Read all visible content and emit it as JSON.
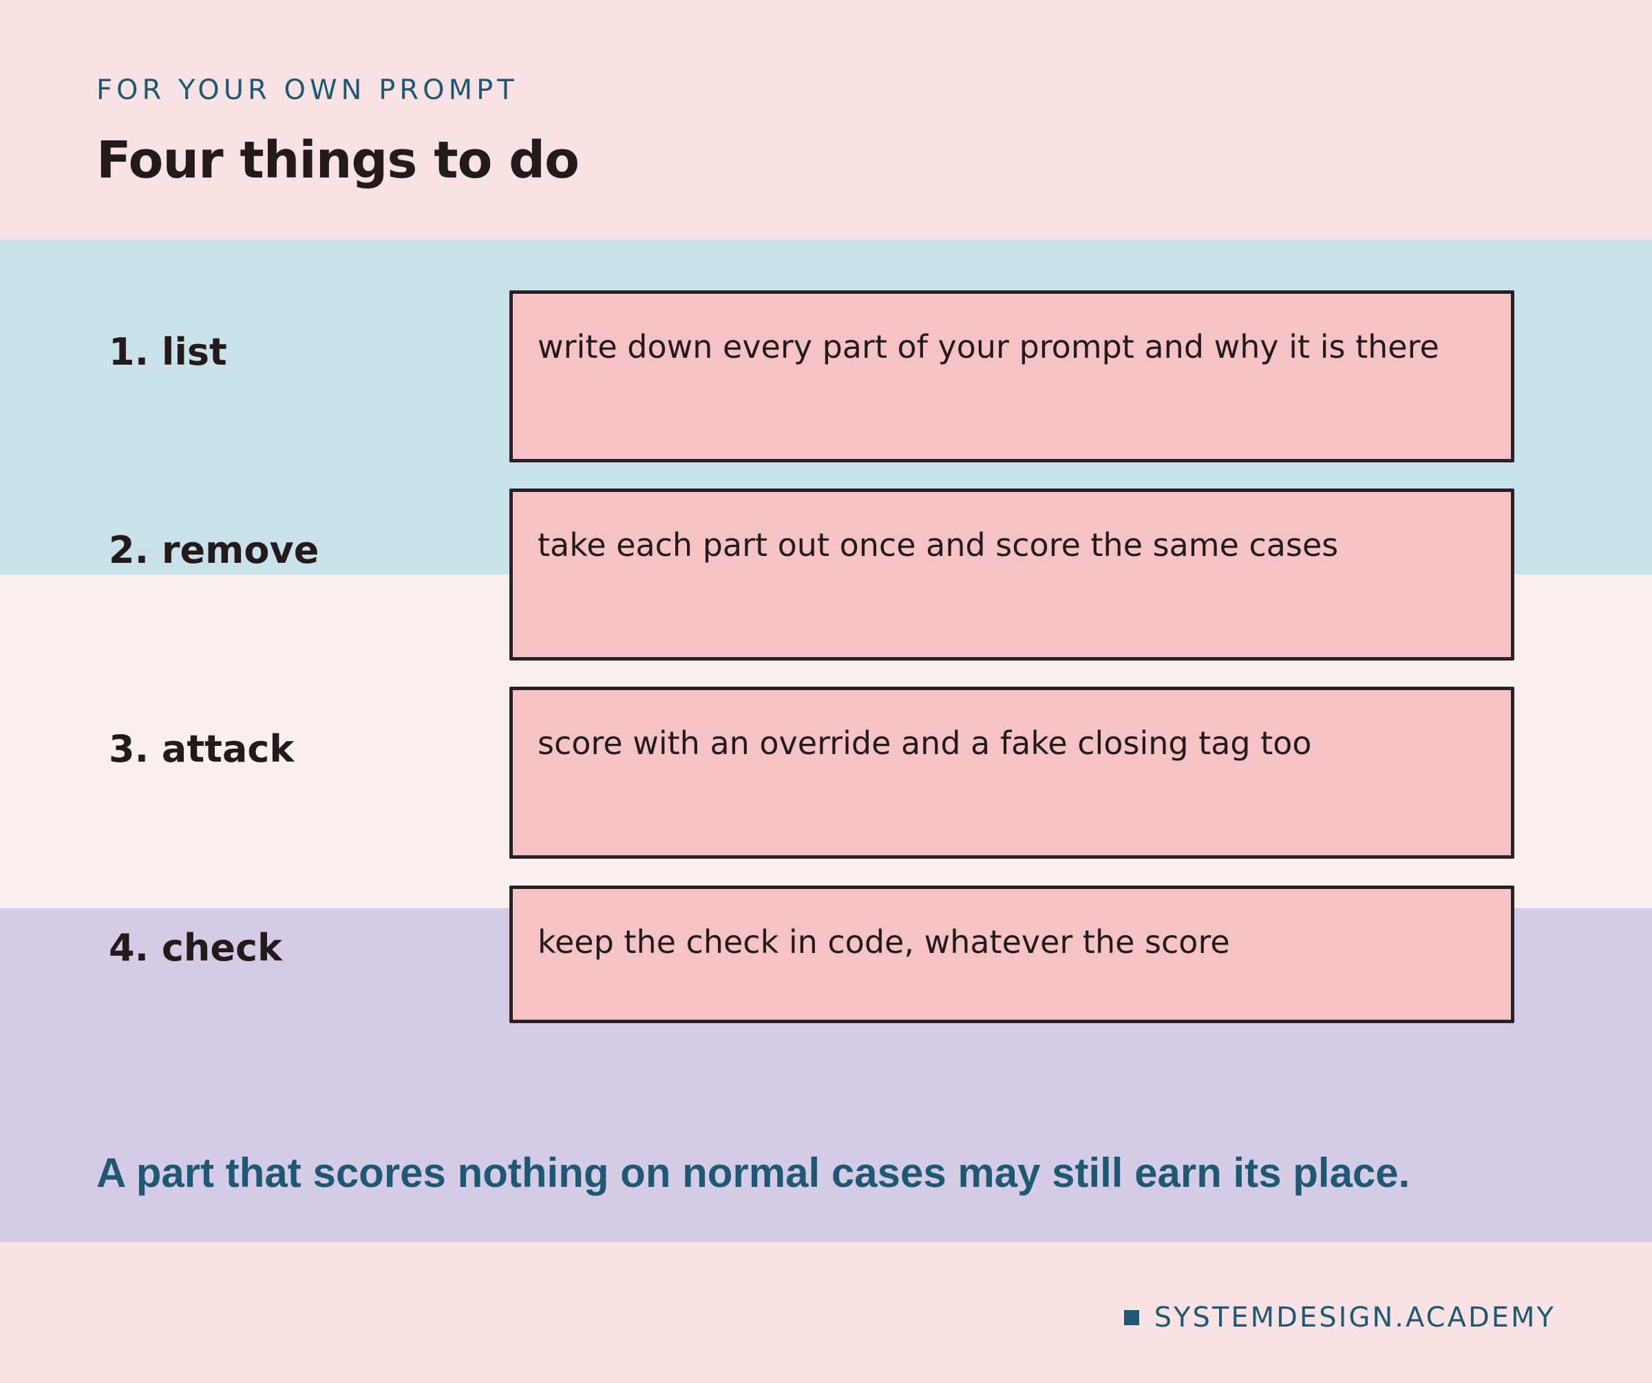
{
  "header": {
    "eyebrow": "FOR YOUR OWN PROMPT",
    "title": "Four things to do"
  },
  "steps": [
    {
      "label": "1. list",
      "description": "write down every part of your prompt and why it is there"
    },
    {
      "label": "2. remove",
      "description": "take each part out once and score the same cases"
    },
    {
      "label": "3. attack",
      "description": "score with an override and a fake closing tag too"
    },
    {
      "label": "4. check",
      "description": "keep the check in code, whatever the score"
    }
  ],
  "footer": {
    "note": "A part that scores nothing on normal cases may still earn its place.",
    "brand": "SYSTEMDESIGN.ACADEMY"
  },
  "colors": {
    "background": "#f8e2e4",
    "band_blue": "#c9e1e9",
    "band_light": "#fbf0f0",
    "band_purple": "#d4cce6",
    "box_fill": "#f5c2c6",
    "accent": "#1f5872",
    "ink": "#231a1c"
  }
}
